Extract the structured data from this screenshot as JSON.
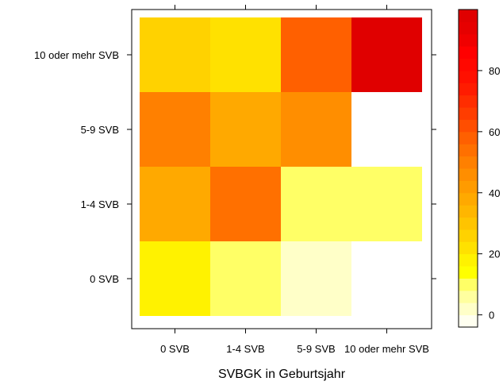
{
  "chart_data": {
    "type": "heatmap",
    "title": "",
    "xlabel": "SVBGK in Geburtsjahr",
    "ylabel": "",
    "x_categories": [
      "0 SVB",
      "1-4 SVB",
      "5-9 SVB",
      "10 oder mehr SVB"
    ],
    "y_categories": [
      "0 SVB",
      "1-4 SVB",
      "5-9 SVB",
      "10 oder mehr SVB"
    ],
    "cells": [
      {
        "x": "0 SVB",
        "y": "0 SVB",
        "value": 18
      },
      {
        "x": "1-4 SVB",
        "y": "0 SVB",
        "value": 10
      },
      {
        "x": "5-9 SVB",
        "y": "0 SVB",
        "value": 2
      },
      {
        "x": "10 oder mehr SVB",
        "y": "0 SVB",
        "value": null
      },
      {
        "x": "0 SVB",
        "y": "1-4 SVB",
        "value": 37
      },
      {
        "x": "1-4 SVB",
        "y": "1-4 SVB",
        "value": 55
      },
      {
        "x": "5-9 SVB",
        "y": "1-4 SVB",
        "value": 10
      },
      {
        "x": "10 oder mehr SVB",
        "y": "1-4 SVB",
        "value": 10
      },
      {
        "x": "0 SVB",
        "y": "5-9 SVB",
        "value": 48
      },
      {
        "x": "1-4 SVB",
        "y": "5-9 SVB",
        "value": 37
      },
      {
        "x": "5-9 SVB",
        "y": "5-9 SVB",
        "value": 45
      },
      {
        "x": "10 oder mehr SVB",
        "y": "5-9 SVB",
        "value": null
      },
      {
        "x": "0 SVB",
        "y": "10 oder mehr SVB",
        "value": 24
      },
      {
        "x": "1-4 SVB",
        "y": "10 oder mehr SVB",
        "value": 21
      },
      {
        "x": "5-9 SVB",
        "y": "10 oder mehr SVB",
        "value": 59
      },
      {
        "x": "10 oder mehr SVB",
        "y": "10 oder mehr SVB",
        "value": 100
      }
    ],
    "colorbar": {
      "min": -4,
      "max": 100,
      "step": 4,
      "ticks": [
        0,
        20,
        40,
        60,
        80
      ]
    },
    "palette": [
      "#FFFFF0",
      "#FFFFC8",
      "#FFFF9F",
      "#FFFF66",
      "#FFFF00",
      "#FFF200",
      "#FFE100",
      "#FFD200",
      "#FFC400",
      "#FFB600",
      "#FFA900",
      "#FF9B00",
      "#FF8E00",
      "#FF8000",
      "#FF7000",
      "#FF6000",
      "#FF4E00",
      "#FF3D00",
      "#FF2D00",
      "#FF1C00",
      "#FF1000",
      "#FF0800",
      "#FF0000",
      "#F00000",
      "#E60000",
      "#E00000"
    ],
    "grid": false,
    "legend": "right"
  }
}
